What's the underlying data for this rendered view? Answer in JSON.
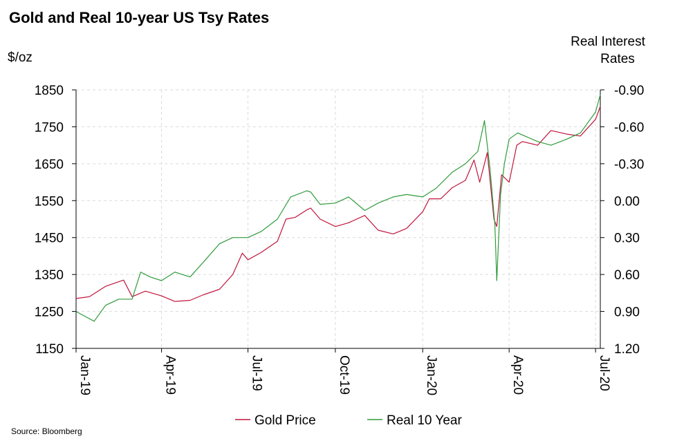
{
  "chart_data": {
    "type": "line",
    "title": "Gold and Real 10-year US Tsy Rates",
    "y_left_label": "$/oz",
    "y_right_label": [
      "Real Interest",
      "Rates"
    ],
    "source": "Source:  Bloomberg",
    "x_ticks": [
      "Jan-19",
      "Apr-19",
      "Jul-19",
      "Oct-19",
      "Jan-20",
      "Apr-20",
      "Jul-20"
    ],
    "x_tick_dates": [
      "2019-01-01",
      "2019-04-01",
      "2019-07-01",
      "2019-10-01",
      "2020-01-01",
      "2020-04-01",
      "2020-07-01"
    ],
    "x_range": [
      "2019-01-01",
      "2020-07-06"
    ],
    "y_left_ticks": [
      1850,
      1750,
      1650,
      1550,
      1450,
      1350,
      1250,
      1150
    ],
    "y_left_range": [
      1150,
      1850
    ],
    "y_right_ticks": [
      "-0.90",
      "-0.60",
      "-0.30",
      "0.00",
      "0.30",
      "0.60",
      "0.90",
      "1.20"
    ],
    "y_right_range": [
      1.2,
      -0.9
    ],
    "y_right_inverted": true,
    "grid": true,
    "legend_position": "bottom",
    "series": [
      {
        "name": "Gold Price",
        "axis": "left",
        "color": "#c0143c",
        "x": [
          "2019-01-01",
          "2019-01-15",
          "2019-02-01",
          "2019-02-20",
          "2019-03-01",
          "2019-03-15",
          "2019-04-01",
          "2019-04-15",
          "2019-05-01",
          "2019-05-15",
          "2019-06-01",
          "2019-06-15",
          "2019-06-25",
          "2019-07-01",
          "2019-07-15",
          "2019-08-01",
          "2019-08-10",
          "2019-08-20",
          "2019-09-01",
          "2019-09-05",
          "2019-09-15",
          "2019-10-01",
          "2019-10-15",
          "2019-11-01",
          "2019-11-15",
          "2019-12-01",
          "2019-12-15",
          "2020-01-01",
          "2020-01-08",
          "2020-01-20",
          "2020-02-01",
          "2020-02-15",
          "2020-02-24",
          "2020-03-01",
          "2020-03-09",
          "2020-03-16",
          "2020-03-19",
          "2020-03-24",
          "2020-04-01",
          "2020-04-09",
          "2020-04-15",
          "2020-05-01",
          "2020-05-15",
          "2020-06-01",
          "2020-06-15",
          "2020-07-01",
          "2020-07-06"
        ],
        "values": [
          1285,
          1290,
          1318,
          1335,
          1290,
          1305,
          1292,
          1277,
          1280,
          1295,
          1310,
          1350,
          1408,
          1390,
          1410,
          1440,
          1500,
          1505,
          1525,
          1530,
          1500,
          1480,
          1490,
          1510,
          1470,
          1460,
          1475,
          1520,
          1555,
          1555,
          1585,
          1605,
          1660,
          1600,
          1680,
          1500,
          1480,
          1620,
          1600,
          1700,
          1710,
          1700,
          1740,
          1730,
          1725,
          1770,
          1805
        ]
      },
      {
        "name": "Real 10 Year",
        "axis": "right",
        "color": "#2e9b3a",
        "x": [
          "2019-01-01",
          "2019-01-20",
          "2019-02-01",
          "2019-02-15",
          "2019-03-01",
          "2019-03-10",
          "2019-03-20",
          "2019-04-01",
          "2019-04-15",
          "2019-05-01",
          "2019-05-15",
          "2019-06-01",
          "2019-06-15",
          "2019-07-01",
          "2019-07-15",
          "2019-08-01",
          "2019-08-15",
          "2019-09-01",
          "2019-09-05",
          "2019-09-15",
          "2019-10-01",
          "2019-10-15",
          "2019-11-01",
          "2019-11-15",
          "2019-12-01",
          "2019-12-15",
          "2020-01-01",
          "2020-01-15",
          "2020-02-01",
          "2020-02-15",
          "2020-02-28",
          "2020-03-06",
          "2020-03-12",
          "2020-03-17",
          "2020-03-19",
          "2020-03-23",
          "2020-03-27",
          "2020-04-01",
          "2020-04-10",
          "2020-05-01",
          "2020-05-15",
          "2020-06-01",
          "2020-06-15",
          "2020-07-01",
          "2020-07-06"
        ],
        "values": [
          0.9,
          0.98,
          0.85,
          0.8,
          0.8,
          0.58,
          0.62,
          0.65,
          0.58,
          0.62,
          0.5,
          0.35,
          0.3,
          0.3,
          0.25,
          0.15,
          -0.03,
          -0.08,
          -0.07,
          0.03,
          0.02,
          -0.03,
          0.08,
          0.02,
          -0.03,
          -0.05,
          -0.03,
          -0.1,
          -0.23,
          -0.3,
          -0.4,
          -0.65,
          -0.25,
          0.2,
          0.65,
          -0.05,
          -0.3,
          -0.5,
          -0.55,
          -0.48,
          -0.45,
          -0.5,
          -0.55,
          -0.72,
          -0.86
        ]
      }
    ]
  }
}
